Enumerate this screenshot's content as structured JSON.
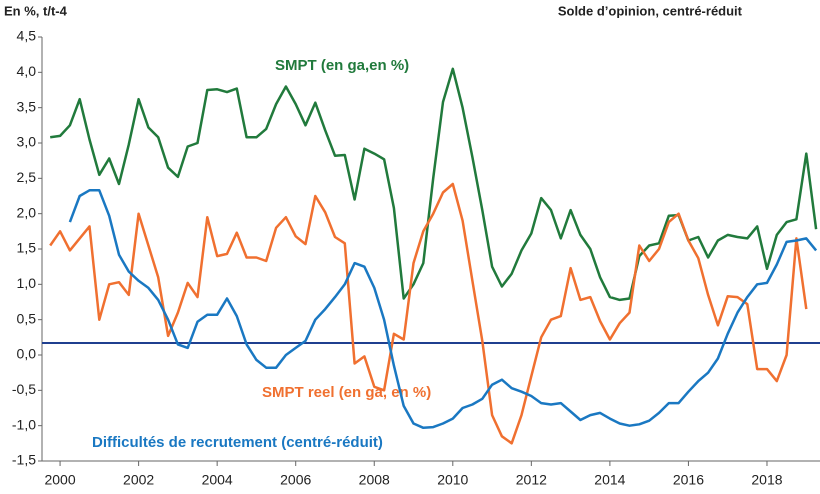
{
  "chart_data": {
    "type": "line",
    "title": "En %, t/t-4",
    "subtitle": "Solde d’opinion, centré-réduit",
    "x": [
      1999.75,
      2000,
      2000.25,
      2000.5,
      2000.75,
      2001,
      2001.25,
      2001.5,
      2001.75,
      2002,
      2002.25,
      2002.5,
      2002.75,
      2003,
      2003.25,
      2003.5,
      2003.75,
      2004,
      2004.25,
      2004.5,
      2004.75,
      2005,
      2005.25,
      2005.5,
      2005.75,
      2006,
      2006.25,
      2006.5,
      2006.75,
      2007,
      2007.25,
      2007.5,
      2007.75,
      2008,
      2008.25,
      2008.5,
      2008.75,
      2009,
      2009.25,
      2009.5,
      2009.75,
      2010,
      2010.25,
      2010.5,
      2010.75,
      2011,
      2011.25,
      2011.5,
      2011.75,
      2012,
      2012.25,
      2012.5,
      2012.75,
      2013,
      2013.25,
      2013.5,
      2013.75,
      2014,
      2014.25,
      2014.5,
      2014.75,
      2015,
      2015.25,
      2015.5,
      2015.75,
      2016,
      2016.25,
      2016.5,
      2016.75,
      2017,
      2017.25,
      2017.5,
      2017.75,
      2018,
      2018.25,
      2018.5,
      2018.75,
      2019,
      2019.25
    ],
    "series": [
      {
        "name": "SMPT (en ga,en %)",
        "color": "#217a3c",
        "values": [
          3.08,
          3.1,
          3.25,
          3.62,
          3.05,
          2.55,
          2.78,
          2.42,
          2.98,
          3.62,
          3.22,
          3.08,
          2.65,
          2.52,
          2.95,
          3.0,
          3.75,
          3.76,
          3.72,
          3.77,
          3.08,
          3.08,
          3.2,
          3.55,
          3.8,
          3.55,
          3.25,
          3.57,
          3.18,
          2.82,
          2.83,
          2.2,
          2.92,
          2.85,
          2.77,
          2.08,
          0.8,
          1.0,
          1.3,
          2.5,
          3.58,
          4.05,
          3.5,
          2.8,
          2.05,
          1.25,
          0.97,
          1.15,
          1.48,
          1.72,
          2.22,
          2.05,
          1.65,
          2.05,
          1.7,
          1.5,
          1.1,
          0.82,
          0.78,
          0.8,
          1.4,
          1.55,
          1.58,
          1.97,
          1.98,
          1.62,
          1.67,
          1.38,
          1.62,
          1.7,
          1.67,
          1.65,
          1.82,
          1.22,
          1.7,
          1.88,
          1.92,
          2.85,
          1.78
        ]
      },
      {
        "name": "SMPT reel (en ga, en %)",
        "color": "#f07030",
        "values": [
          1.55,
          1.75,
          1.48,
          1.65,
          1.82,
          0.5,
          1.0,
          1.03,
          0.85,
          2.0,
          1.55,
          1.1,
          0.27,
          0.6,
          1.02,
          0.82,
          1.95,
          1.4,
          1.43,
          1.73,
          1.38,
          1.38,
          1.33,
          1.8,
          1.95,
          1.68,
          1.57,
          2.25,
          2.02,
          1.67,
          1.58,
          -0.12,
          -0.02,
          -0.45,
          -0.5,
          0.3,
          0.22,
          1.3,
          1.75,
          2.0,
          2.3,
          2.42,
          1.9,
          1.05,
          0.2,
          -0.85,
          -1.15,
          -1.25,
          -0.85,
          -0.3,
          0.25,
          0.5,
          0.55,
          1.23,
          0.78,
          0.82,
          0.48,
          0.22,
          0.45,
          0.6,
          1.55,
          1.33,
          1.5,
          1.88,
          2.0,
          1.62,
          1.37,
          0.85,
          0.42,
          0.83,
          0.82,
          0.72,
          -0.2,
          -0.2,
          -0.37,
          0.0,
          1.65,
          0.65,
          null
        ]
      },
      {
        "name": "Difficultés de recrutement (centré-réduit)",
        "color": "#1a78c2",
        "values": [
          null,
          null,
          1.88,
          2.25,
          2.33,
          2.33,
          1.97,
          1.42,
          1.18,
          1.05,
          0.95,
          0.78,
          0.5,
          0.15,
          0.1,
          0.47,
          0.57,
          0.57,
          0.8,
          0.55,
          0.15,
          -0.07,
          -0.18,
          -0.18,
          0.0,
          0.1,
          0.2,
          0.5,
          0.65,
          0.82,
          1.0,
          1.3,
          1.25,
          0.95,
          0.5,
          -0.15,
          -0.72,
          -0.97,
          -1.03,
          -1.02,
          -0.97,
          -0.9,
          -0.75,
          -0.7,
          -0.62,
          -0.42,
          -0.35,
          -0.47,
          -0.52,
          -0.58,
          -0.68,
          -0.7,
          -0.68,
          -0.8,
          -0.92,
          -0.85,
          -0.82,
          -0.9,
          -0.97,
          -1.0,
          -0.98,
          -0.93,
          -0.82,
          -0.68,
          -0.68,
          -0.52,
          -0.37,
          -0.25,
          -0.05,
          0.3,
          0.6,
          0.82,
          1.0,
          1.02,
          1.28,
          1.6,
          1.62,
          1.65,
          1.48
        ]
      }
    ],
    "reference_line": {
      "value": 0.17,
      "color": "#1f3f8f"
    },
    "xlim": [
      1999.54,
      2019.35
    ],
    "xticks": [
      2000,
      2002,
      2004,
      2006,
      2008,
      2010,
      2012,
      2014,
      2016,
      2018
    ],
    "ylim": [
      -1.5,
      4.5
    ],
    "yticks": [
      {
        "value": -1.5,
        "label": "-1,5"
      },
      {
        "value": -1,
        "label": "-1,0"
      },
      {
        "value": -0.5,
        "label": "-0,5"
      },
      {
        "value": 0,
        "label": "0,0"
      },
      {
        "value": 0.5,
        "label": "0,5"
      },
      {
        "value": 1,
        "label": "1,0"
      },
      {
        "value": 1.5,
        "label": "1,5"
      },
      {
        "value": 2,
        "label": "2,0"
      },
      {
        "value": 2.5,
        "label": "2,5"
      },
      {
        "value": 3,
        "label": "3,0"
      },
      {
        "value": 3.5,
        "label": "3,5"
      },
      {
        "value": 4,
        "label": "4,0"
      },
      {
        "value": 4.5,
        "label": "4,5"
      }
    ]
  }
}
